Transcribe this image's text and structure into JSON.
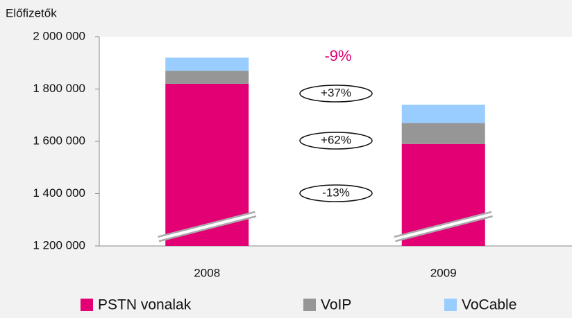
{
  "chart_data": {
    "type": "stacked-bar",
    "y_label": "Előfizetők",
    "categories": [
      "2008",
      "2009"
    ],
    "series": [
      {
        "name": "PSTN vonalak",
        "color": "#e20074",
        "values": [
          1820000,
          1590000
        ]
      },
      {
        "name": "VoIP",
        "color": "#969696",
        "values": [
          50000,
          80000
        ]
      },
      {
        "name": "VoCable",
        "color": "#99ccff",
        "values": [
          50000,
          70000
        ]
      }
    ],
    "ylim": [
      1200000,
      2000000
    ],
    "yticks": [
      {
        "value": 1200000,
        "label": "1 200 000"
      },
      {
        "value": 1400000,
        "label": "1 400 000"
      },
      {
        "value": 1600000,
        "label": "1 600 000"
      },
      {
        "value": 1800000,
        "label": "1 800 000"
      },
      {
        "value": 2000000,
        "label": "2 000 000"
      }
    ],
    "annotations": [
      "-9%",
      "+37%",
      "+62%",
      "-13%"
    ],
    "axis_break": true
  }
}
